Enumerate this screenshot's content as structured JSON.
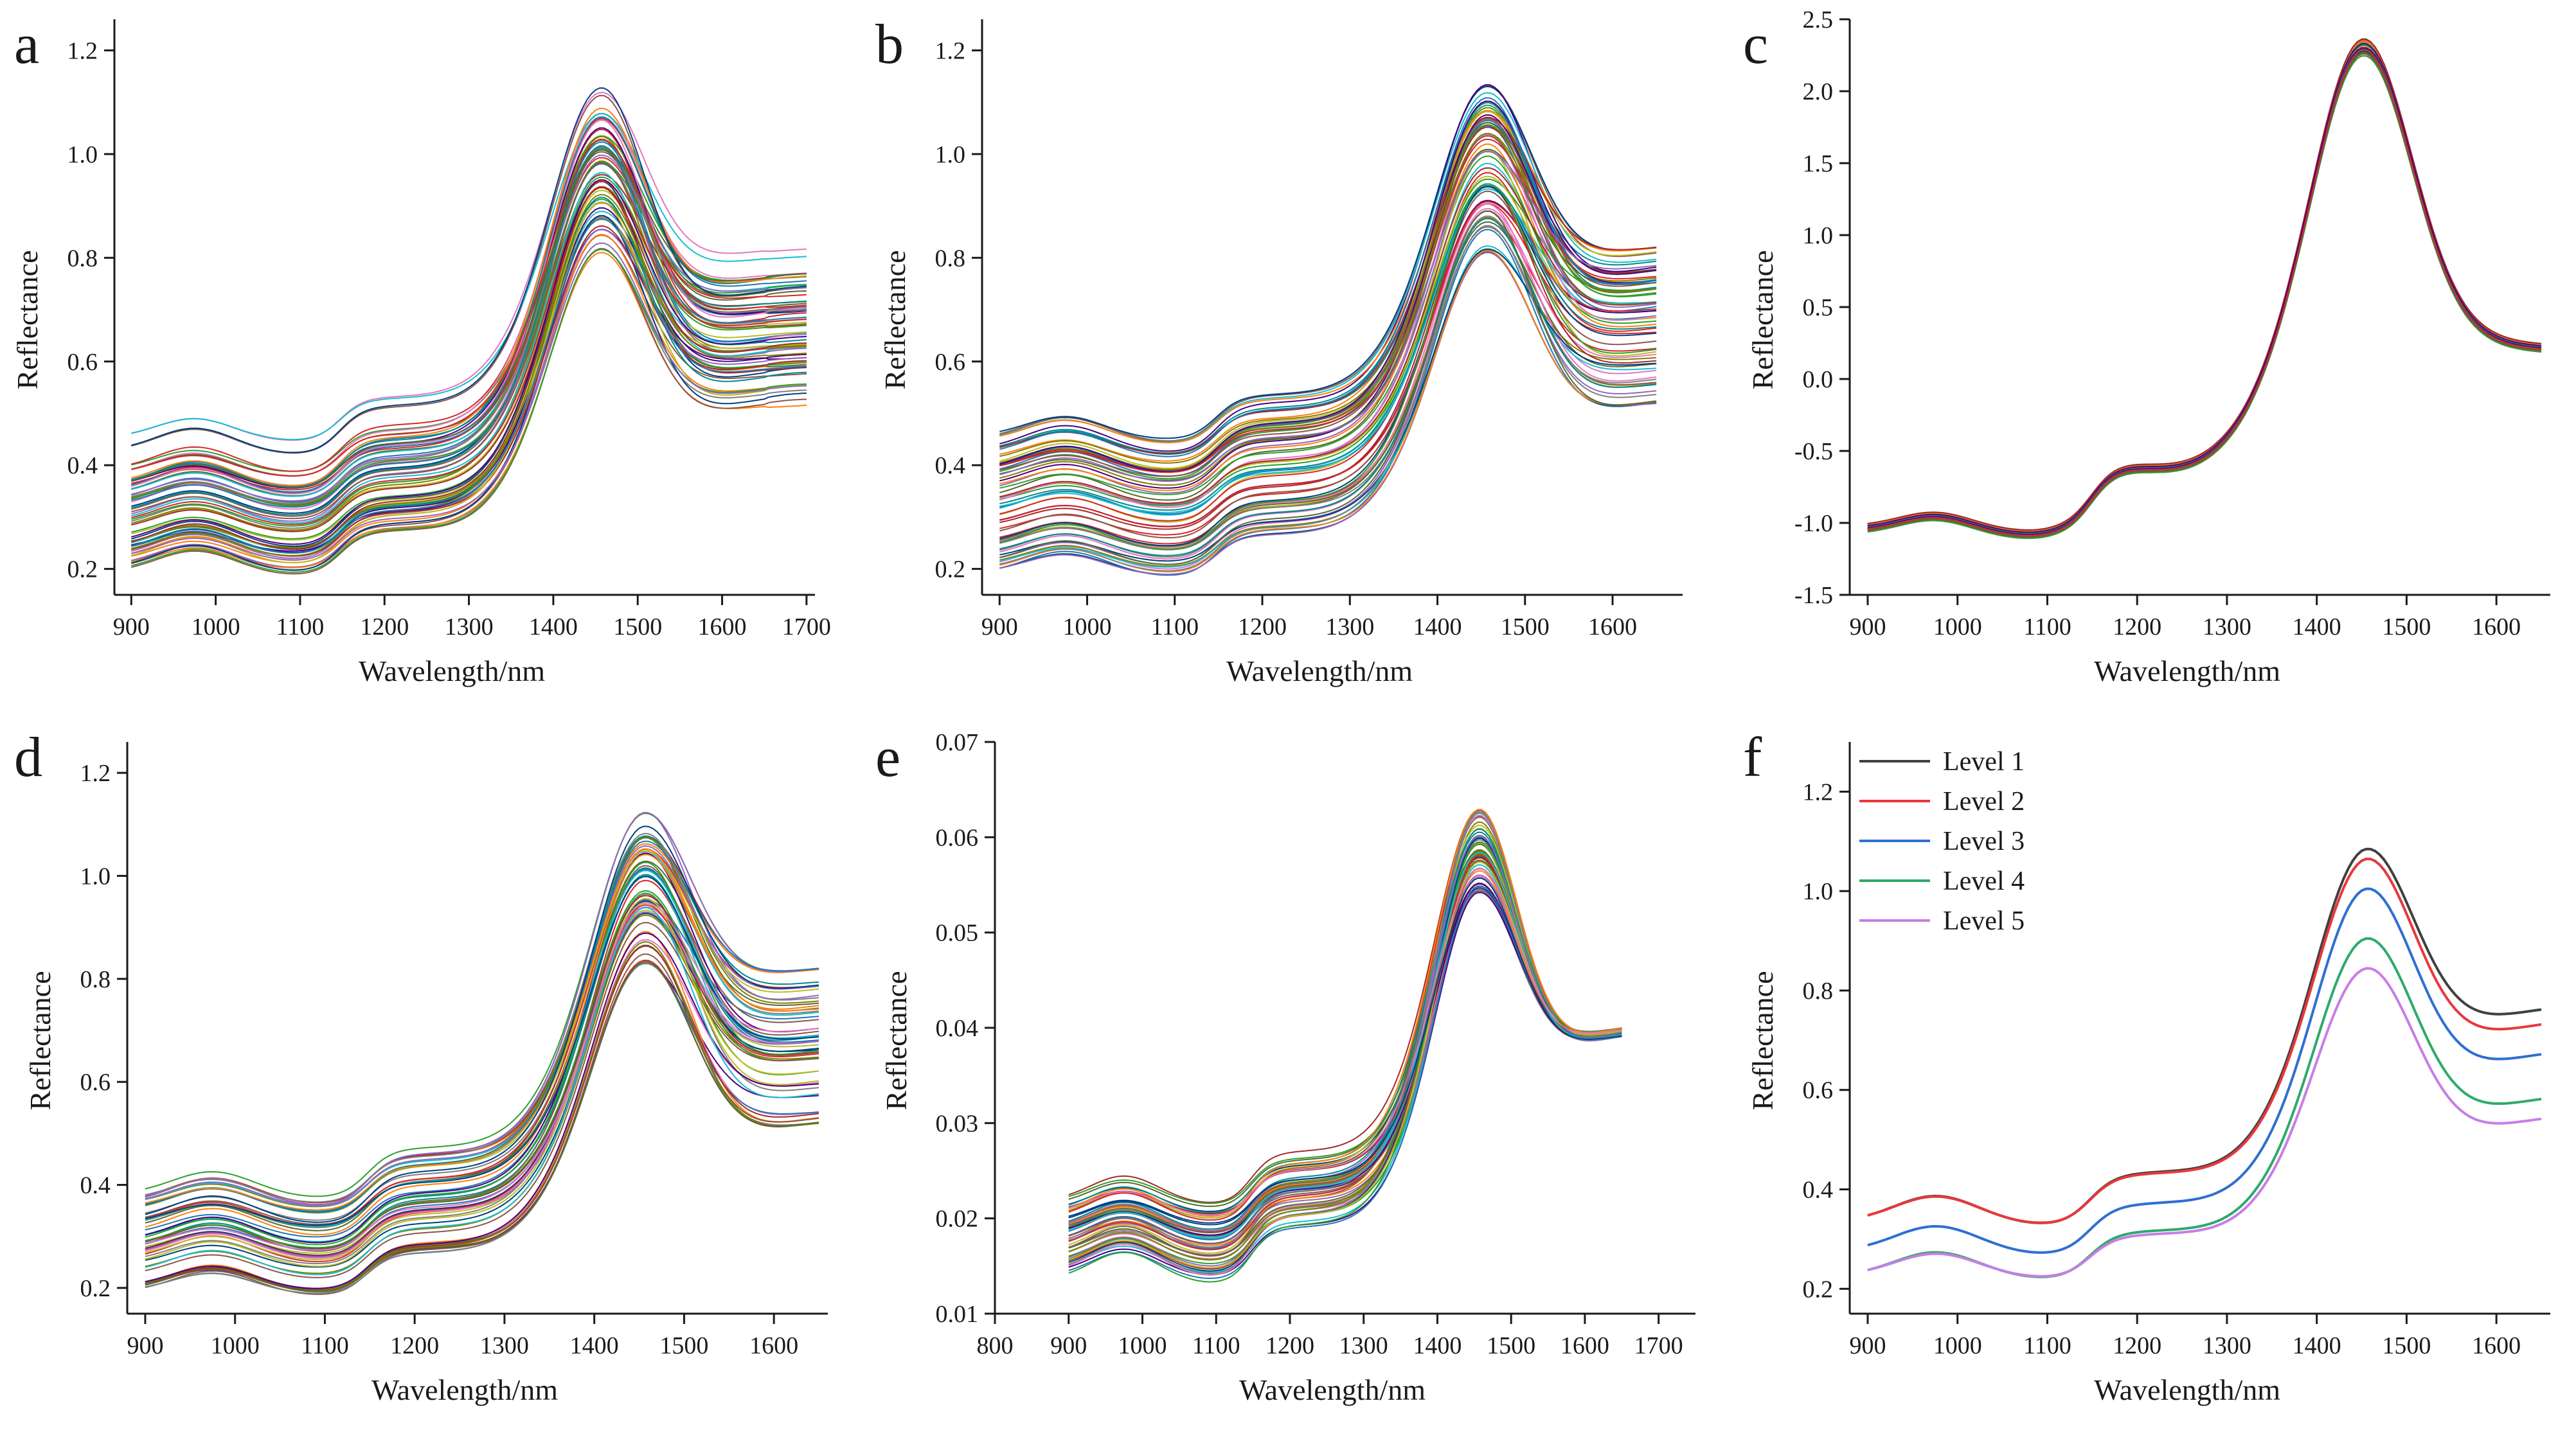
{
  "colors": {
    "palette": [
      "#556b2f",
      "#d62728",
      "#1f77b4",
      "#2ca02c",
      "#9467bd",
      "#8c564b",
      "#17becf",
      "#bcbd22",
      "#ff7f0e",
      "#e377c2",
      "#7f7f7f",
      "#003f7f",
      "#a52a2a",
      "#008b8b",
      "#808000",
      "#4b0082"
    ],
    "levels": [
      "#404040",
      "#e8383d",
      "#2f6fd1",
      "#2faa6b",
      "#c77ee6"
    ]
  },
  "chart_data": [
    {
      "panel": "a",
      "type": "line",
      "xlabel": "Wavelength/nm",
      "ylabel": "Reflectance",
      "xlim": [
        880,
        1710
      ],
      "ylim": [
        0.15,
        1.26
      ],
      "xticks": [
        "900",
        "1000",
        "1100",
        "1200",
        "1300",
        "1400",
        "1500",
        "1600",
        "1700"
      ],
      "yticks": [
        "0.2",
        "0.4",
        "0.6",
        "0.8",
        "1.0",
        "1.2"
      ],
      "xrange": [
        900,
        1700
      ],
      "ymin": 0.2,
      "ymax": 0.47,
      "peak_low": 0.81,
      "peak_high": 1.13,
      "series_count": 70
    },
    {
      "panel": "b",
      "type": "line",
      "xlabel": "Wavelength/nm",
      "ylabel": "Reflectance",
      "xlim": [
        880,
        1680
      ],
      "ylim": [
        0.15,
        1.26
      ],
      "xticks": [
        "900",
        "1000",
        "1100",
        "1200",
        "1300",
        "1400",
        "1500",
        "1600"
      ],
      "yticks": [
        "0.2",
        "0.4",
        "0.6",
        "0.8",
        "1.0",
        "1.2"
      ],
      "xrange": [
        900,
        1650
      ],
      "ymin": 0.2,
      "ymax": 0.47,
      "peak_low": 0.81,
      "peak_high": 1.13,
      "series_count": 70
    },
    {
      "panel": "c",
      "type": "line",
      "xlabel": "Wavelength/nm",
      "ylabel": "Reflectance",
      "xlim": [
        880,
        1660
      ],
      "ylim": [
        -1.5,
        2.5
      ],
      "xticks": [
        "900",
        "1000",
        "1100",
        "1200",
        "1300",
        "1400",
        "1500",
        "1600"
      ],
      "yticks": [
        "-1.5",
        "-1.0",
        "-0.5",
        "0.0",
        "0.5",
        "1.0",
        "1.5",
        "2.0",
        "2.5"
      ],
      "xrange": [
        900,
        1650
      ],
      "series_count": 50
    },
    {
      "panel": "d",
      "type": "line",
      "xlabel": "Wavelength/nm",
      "ylabel": "Reflectance",
      "xlim": [
        880,
        1660
      ],
      "ylim": [
        0.15,
        1.26
      ],
      "xticks": [
        "900",
        "1000",
        "1100",
        "1200",
        "1300",
        "1400",
        "1500",
        "1600"
      ],
      "yticks": [
        "0.2",
        "0.4",
        "0.6",
        "0.8",
        "1.0",
        "1.2"
      ],
      "xrange": [
        900,
        1650
      ],
      "ymin": 0.2,
      "ymax": 0.4,
      "peak_low": 0.83,
      "peak_high": 1.12,
      "series_count": 60
    },
    {
      "panel": "e",
      "type": "line",
      "xlabel": "Wavelength/nm",
      "ylabel": "Reflectance",
      "xlim": [
        800,
        1750
      ],
      "ylim": [
        0.01,
        0.07
      ],
      "xticks": [
        "800",
        "900",
        "1000",
        "1100",
        "1200",
        "1300",
        "1400",
        "1500",
        "1600",
        "1700"
      ],
      "yticks": [
        "0.01",
        "0.02",
        "0.03",
        "0.04",
        "0.05",
        "0.06",
        "0.07"
      ],
      "xrange": [
        900,
        1650
      ],
      "series_count": 60
    },
    {
      "panel": "f",
      "type": "line",
      "xlabel": "Wavelength/nm",
      "ylabel": "Reflectance",
      "xlim": [
        880,
        1660
      ],
      "ylim": [
        0.15,
        1.3
      ],
      "xticks": [
        "900",
        "1000",
        "1100",
        "1200",
        "1300",
        "1400",
        "1500",
        "1600"
      ],
      "yticks": [
        "0.2",
        "0.4",
        "0.6",
        "0.8",
        "1.0",
        "1.2"
      ],
      "xrange": [
        900,
        1650
      ],
      "legend": "top-left",
      "series": [
        {
          "name": "Level 1",
          "start": 0.35,
          "peak": 1.08,
          "end": 0.76
        },
        {
          "name": "Level 2",
          "start": 0.35,
          "peak": 1.06,
          "end": 0.73
        },
        {
          "name": "Level 3",
          "start": 0.29,
          "peak": 1.0,
          "end": 0.67
        },
        {
          "name": "Level 4",
          "start": 0.24,
          "peak": 0.9,
          "end": 0.58
        },
        {
          "name": "Level 5",
          "start": 0.24,
          "peak": 0.84,
          "end": 0.54
        }
      ]
    }
  ]
}
